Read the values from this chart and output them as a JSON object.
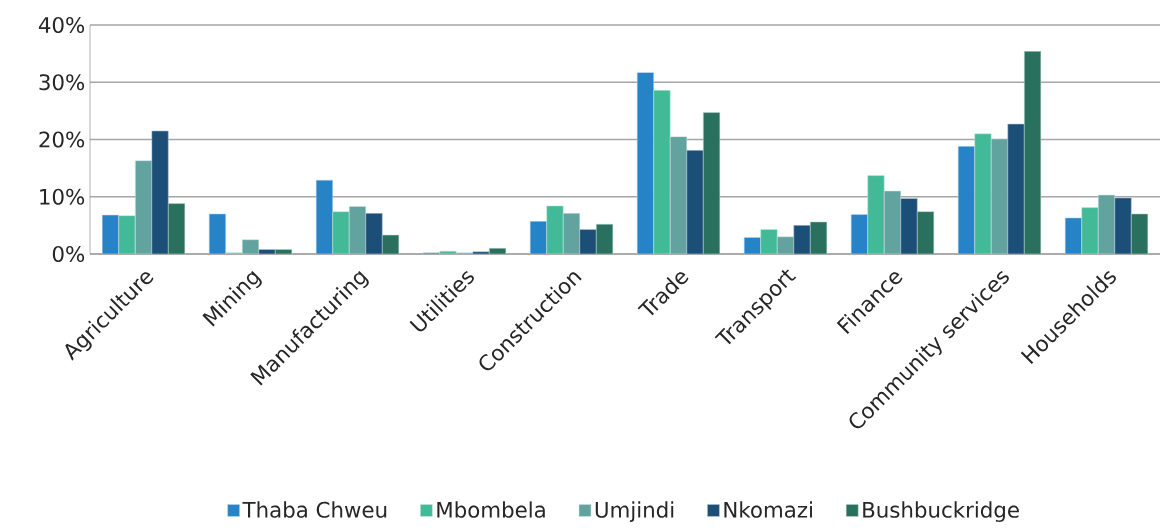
{
  "chart_data": {
    "type": "bar",
    "categories": [
      "Agriculture",
      "Mining",
      "Manufacturing",
      "Utilities",
      "Construction",
      "Trade",
      "Transport",
      "Finance",
      "Community services",
      "Households"
    ],
    "series": [
      {
        "name": "Thaba Chweu",
        "color": "#2683c6",
        "values": [
          6.8,
          7.0,
          12.9,
          0.2,
          5.7,
          31.7,
          2.9,
          6.9,
          18.8,
          6.3
        ]
      },
      {
        "name": "Mbombela",
        "color": "#42ba97",
        "values": [
          6.7,
          0.2,
          7.4,
          0.5,
          8.4,
          28.6,
          4.3,
          13.7,
          21.0,
          8.1
        ]
      },
      {
        "name": "Umjindi",
        "color": "#62a39f",
        "values": [
          16.3,
          2.5,
          8.3,
          0.2,
          7.1,
          20.5,
          3.0,
          11.0,
          20.1,
          10.3
        ]
      },
      {
        "name": "Nkomazi",
        "color": "#1c4f78",
        "values": [
          21.5,
          0.8,
          7.1,
          0.4,
          4.3,
          18.1,
          5.0,
          9.7,
          22.7,
          9.8
        ]
      },
      {
        "name": "Bushbuckridge",
        "color": "#29705f",
        "values": [
          8.8,
          0.8,
          3.3,
          1.0,
          5.2,
          24.7,
          5.6,
          7.4,
          35.4,
          7.0
        ]
      }
    ],
    "ylim": [
      0,
      40
    ],
    "yticks": [
      {
        "value": 0,
        "label": "0%"
      },
      {
        "value": 10,
        "label": "10%"
      },
      {
        "value": 20,
        "label": "20%"
      },
      {
        "value": 30,
        "label": "30%"
      },
      {
        "value": 40,
        "label": "40%"
      }
    ],
    "grid": "y",
    "legend": "bottom"
  }
}
